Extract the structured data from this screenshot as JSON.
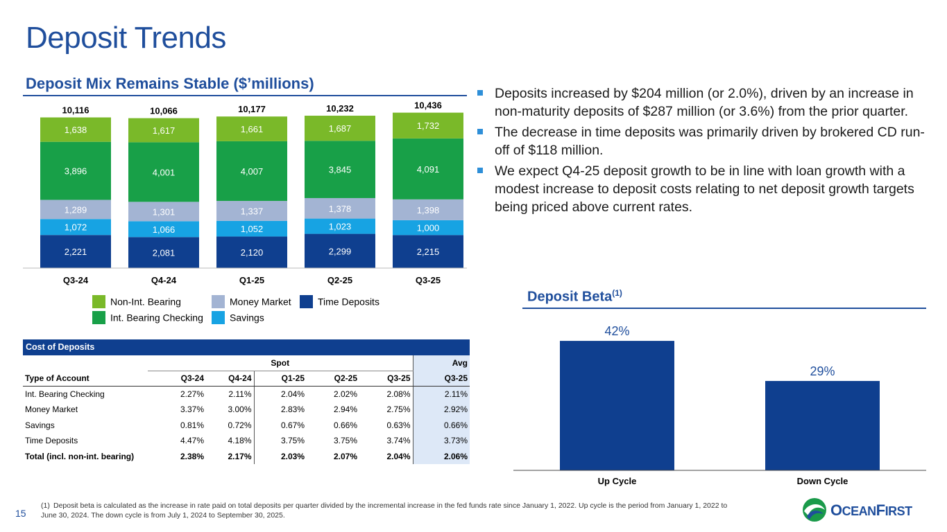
{
  "page": {
    "title": "Deposit Trends",
    "subtitle": "Deposit Mix Remains Stable ($’millions)",
    "page_number": "15"
  },
  "legend": {
    "non_int": "Non-Int. Bearing",
    "money_market": "Money Market",
    "time_deposits": "Time Deposits",
    "int_checking": "Int. Bearing Checking",
    "savings": "Savings"
  },
  "chart_data": [
    {
      "type": "bar",
      "stacked": true,
      "categories": [
        "Q3-24",
        "Q4-24",
        "Q1-25",
        "Q2-25",
        "Q3-25"
      ],
      "totals": [
        10116,
        10066,
        10177,
        10232,
        10436
      ],
      "series": [
        {
          "name": "Time Deposits",
          "color": "#0f3f8f",
          "values": [
            2221,
            2081,
            2120,
            2299,
            2215
          ]
        },
        {
          "name": "Savings",
          "color": "#17a3e3",
          "values": [
            1072,
            1066,
            1052,
            1023,
            1000
          ]
        },
        {
          "name": "Money Market",
          "color": "#a3b4d3",
          "values": [
            1289,
            1301,
            1337,
            1378,
            1398
          ]
        },
        {
          "name": "Int. Bearing Checking",
          "color": "#18a048",
          "values": [
            3896,
            4001,
            4007,
            3845,
            4091
          ]
        },
        {
          "name": "Non-Int. Bearing",
          "color": "#7ab929",
          "values": [
            1638,
            1617,
            1661,
            1687,
            1732
          ]
        }
      ],
      "ylim": [
        0,
        11000
      ],
      "legend_position": "bottom"
    },
    {
      "type": "bar",
      "categories": [
        "Up Cycle",
        "Down Cycle"
      ],
      "values": [
        42,
        29
      ],
      "value_labels": [
        "42%",
        "29%"
      ],
      "color": "#0f3f8f",
      "ylim": [
        0,
        48
      ]
    }
  ],
  "bullets": [
    "Deposits increased by $204 million (or 2.0%), driven by an increase in non-maturity deposits of $287 million (or 3.6%) from the prior quarter.",
    "The decrease in time deposits was primarily driven by brokered CD run-off of $118 million.",
    "We expect Q4-25 deposit growth to be in line with loan growth with a modest increase to deposit costs relating to net deposit growth targets being priced above current rates."
  ],
  "cost_table": {
    "title": "Cost of Deposits",
    "spot_label": "Spot",
    "avg_label": "Avg",
    "columns": [
      "Type of Account",
      "Q3-24",
      "Q4-24",
      "Q1-25",
      "Q2-25",
      "Q3-25",
      "Q3-25"
    ],
    "rows": [
      [
        "Int. Bearing Checking",
        "2.27%",
        "2.11%",
        "2.04%",
        "2.02%",
        "2.08%",
        "2.11%"
      ],
      [
        "Money Market",
        "3.37%",
        "3.00%",
        "2.83%",
        "2.94%",
        "2.75%",
        "2.92%"
      ],
      [
        "Savings",
        "0.81%",
        "0.72%",
        "0.67%",
        "0.66%",
        "0.63%",
        "0.66%"
      ],
      [
        "Time Deposits",
        "4.47%",
        "4.18%",
        "3.75%",
        "3.75%",
        "3.74%",
        "3.73%"
      ],
      [
        "Total (incl. non-int. bearing)",
        "2.38%",
        "2.17%",
        "2.03%",
        "2.07%",
        "2.04%",
        "2.06%"
      ]
    ]
  },
  "beta": {
    "title": "Deposit Beta",
    "sup": "(1)"
  },
  "footnote": {
    "mark": "(1)",
    "text": "Deposit beta is calculated as the increase in rate paid on total deposits per quarter divided by the incremental increase in the fed funds rate since January 1, 2022. Up cycle is the period from January 1, 2022 to June 30, 2024. The down cycle is from July 1, 2024 to September 30, 2025."
  },
  "logo": {
    "text_1": "O",
    "text_2": "CEAN",
    "text_3": "F",
    "text_4": "IRST"
  }
}
